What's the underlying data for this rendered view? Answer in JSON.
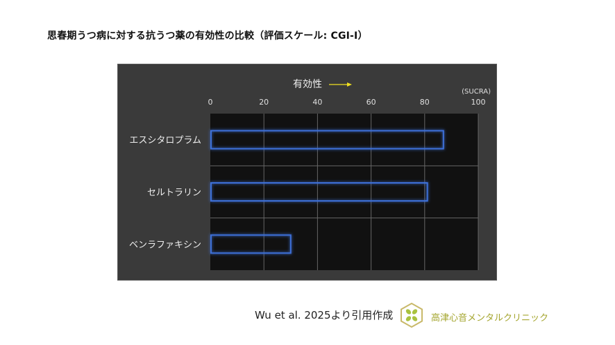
{
  "title": "思春期うつ病に対する抗うつ薬の有効性の比較（評価スケール: CGI-I）",
  "chart_data": {
    "type": "bar",
    "orientation": "horizontal",
    "axis_title": "有効性",
    "unit_label": "(SUCRA)",
    "xlim": [
      0,
      100
    ],
    "xticks": [
      "0",
      "20",
      "40",
      "60",
      "80",
      "100"
    ],
    "categories": [
      "エスシタロプラム",
      "セルトラリン",
      "ベンラファキシン"
    ],
    "values": [
      87,
      81,
      30
    ],
    "grid": true,
    "colors": {
      "panel": "#3a3a3a",
      "plot": "#111111",
      "bar_edge": "#3d6fd8",
      "grid": "#666666",
      "arrow": "#f0e020"
    }
  },
  "footer": {
    "citation": "Wu et al. 2025より引用作成",
    "clinic_name": "高津心音メンタルクリニック"
  },
  "logo_colors": {
    "hex": "#c9b96a",
    "leaf": "#a9c23f"
  }
}
